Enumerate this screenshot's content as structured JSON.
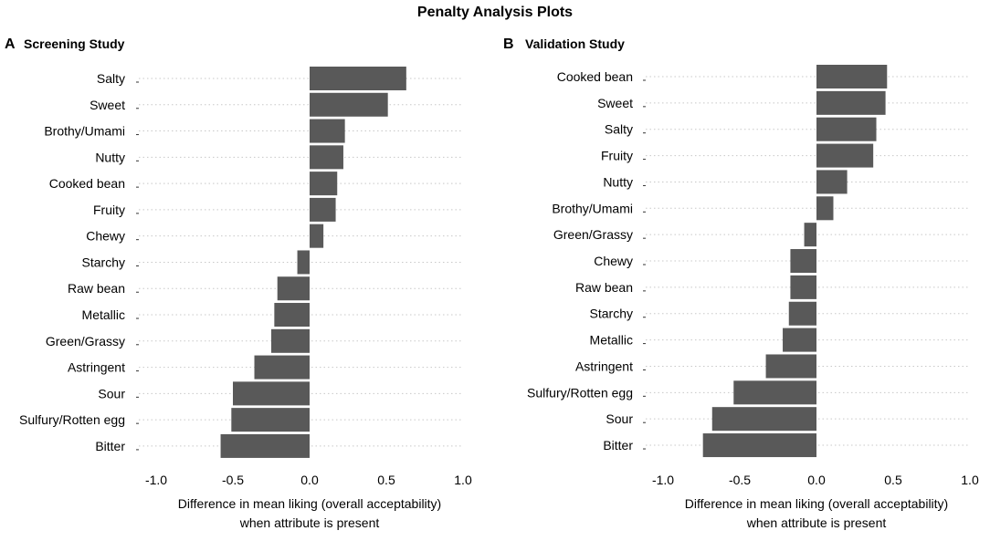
{
  "figure_title": "Penalty Analysis Plots",
  "chart_data": [
    {
      "type": "bar",
      "orientation": "horizontal",
      "panel_letter": "A",
      "title": "Screening Study",
      "categories": [
        "Salty",
        "Sweet",
        "Brothy/Umami",
        "Nutty",
        "Cooked bean",
        "Fruity",
        "Chewy",
        "Starchy",
        "Raw bean",
        "Metallic",
        "Green/Grassy",
        "Astringent",
        "Sour",
        "Sulfury/Rotten egg",
        "Bitter"
      ],
      "values": [
        0.63,
        0.51,
        0.23,
        0.22,
        0.18,
        0.17,
        0.09,
        -0.08,
        -0.21,
        -0.23,
        -0.25,
        -0.36,
        -0.5,
        -0.51,
        -0.58
      ],
      "xlim": [
        -1.0,
        1.0
      ],
      "ticks": [
        "-1.0",
        "-0.5",
        "0.0",
        "0.5",
        "1.0"
      ],
      "tick_values": [
        -1.0,
        -0.5,
        0.0,
        0.5,
        1.0
      ],
      "xlabel_line1": "Difference in mean liking (overall acceptability)",
      "xlabel_line2": "when attribute is present",
      "bar_color": "#595959"
    },
    {
      "type": "bar",
      "orientation": "horizontal",
      "panel_letter": "B",
      "title": "Validation Study",
      "categories": [
        "Cooked bean",
        "Sweet",
        "Salty",
        "Fruity",
        "Nutty",
        "Brothy/Umami",
        "Green/Grassy",
        "Chewy",
        "Raw bean",
        "Starchy",
        "Metallic",
        "Astringent",
        "Sulfury/Rotten egg",
        "Sour",
        "Bitter"
      ],
      "values": [
        0.46,
        0.45,
        0.39,
        0.37,
        0.2,
        0.11,
        -0.08,
        -0.17,
        -0.17,
        -0.18,
        -0.22,
        -0.33,
        -0.54,
        -0.68,
        -0.74
      ],
      "xlim": [
        -1.0,
        1.0
      ],
      "ticks": [
        "-1.0",
        "-0.5",
        "0.0",
        "0.5",
        "1.0"
      ],
      "tick_values": [
        -1.0,
        -0.5,
        0.0,
        0.5,
        1.0
      ],
      "xlabel_line1": "Difference in mean liking (overall acceptability)",
      "xlabel_line2": "when attribute is present",
      "bar_color": "#595959"
    }
  ]
}
